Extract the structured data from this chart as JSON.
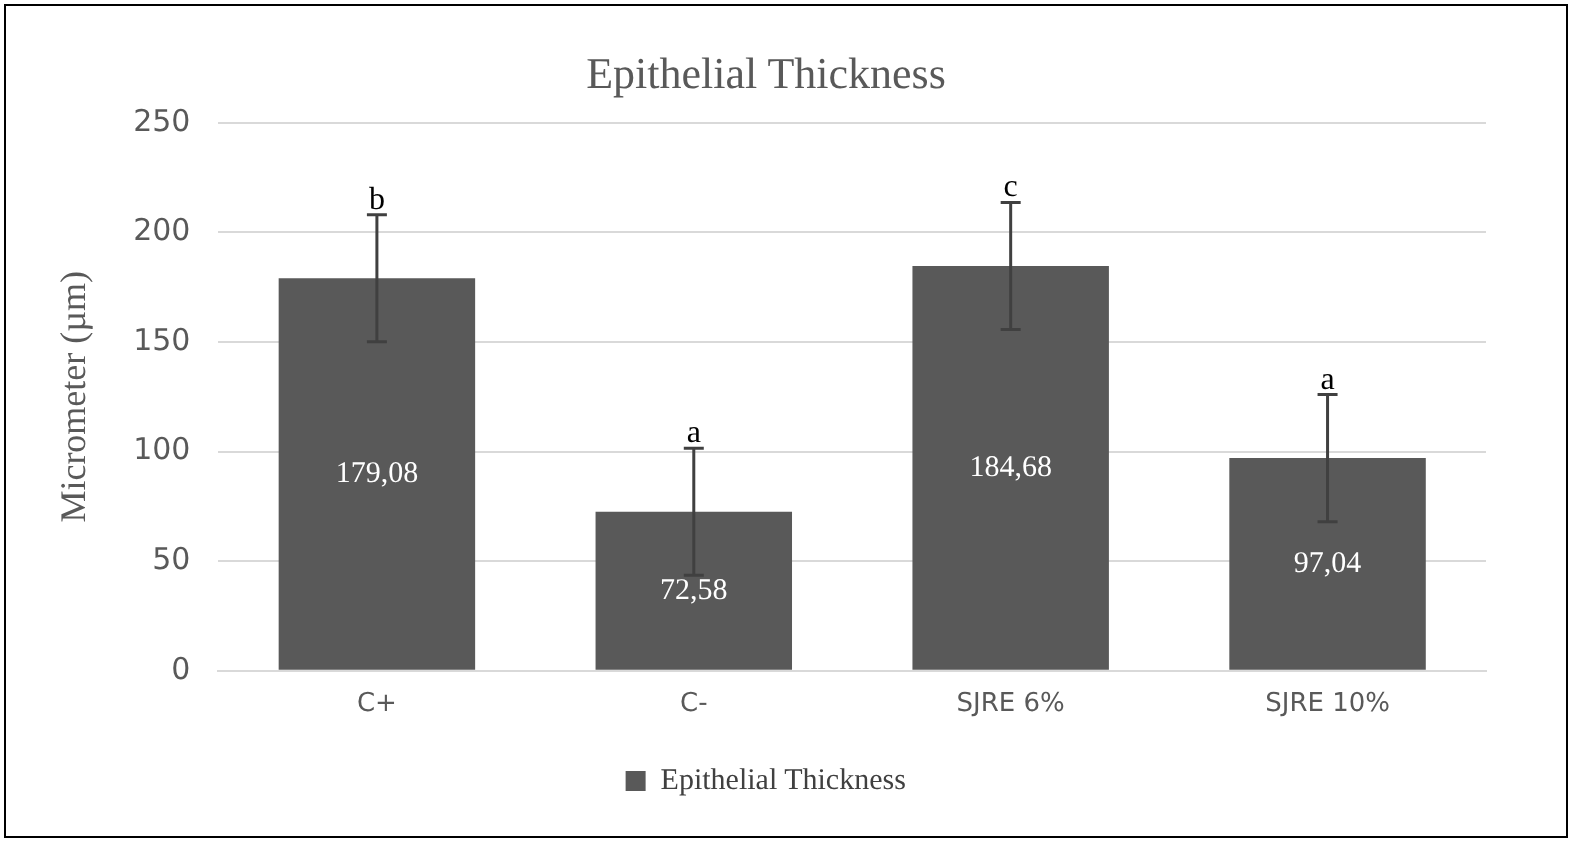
{
  "chart_data": {
    "type": "bar",
    "title": "Epithelial Thickness",
    "ylabel": "Micrometer (µm)",
    "categories": [
      "C+",
      "C-",
      "SJRE 6%",
      "SJRE 10%"
    ],
    "series": [
      {
        "name": "Epithelial Thickness",
        "color": "#595959",
        "values": [
          179.08,
          72.58,
          184.68,
          97.04
        ],
        "errors": [
          29,
          29,
          29,
          29
        ],
        "value_labels": [
          "179,08",
          "72,58",
          "184,68",
          "97,04"
        ]
      }
    ],
    "ylim": [
      0,
      250
    ],
    "yticks": [
      0,
      50,
      100,
      150,
      200,
      250
    ],
    "grid": "y",
    "legend": "bottom",
    "annotations": [
      {
        "text": "b",
        "x": "C+",
        "y": 208
      },
      {
        "text": "a",
        "x": "C-",
        "y": 102
      },
      {
        "text": "c",
        "x": "SJRE 6%",
        "y": 214
      },
      {
        "text": "a",
        "x": "SJRE 10%",
        "y": 126
      }
    ]
  }
}
